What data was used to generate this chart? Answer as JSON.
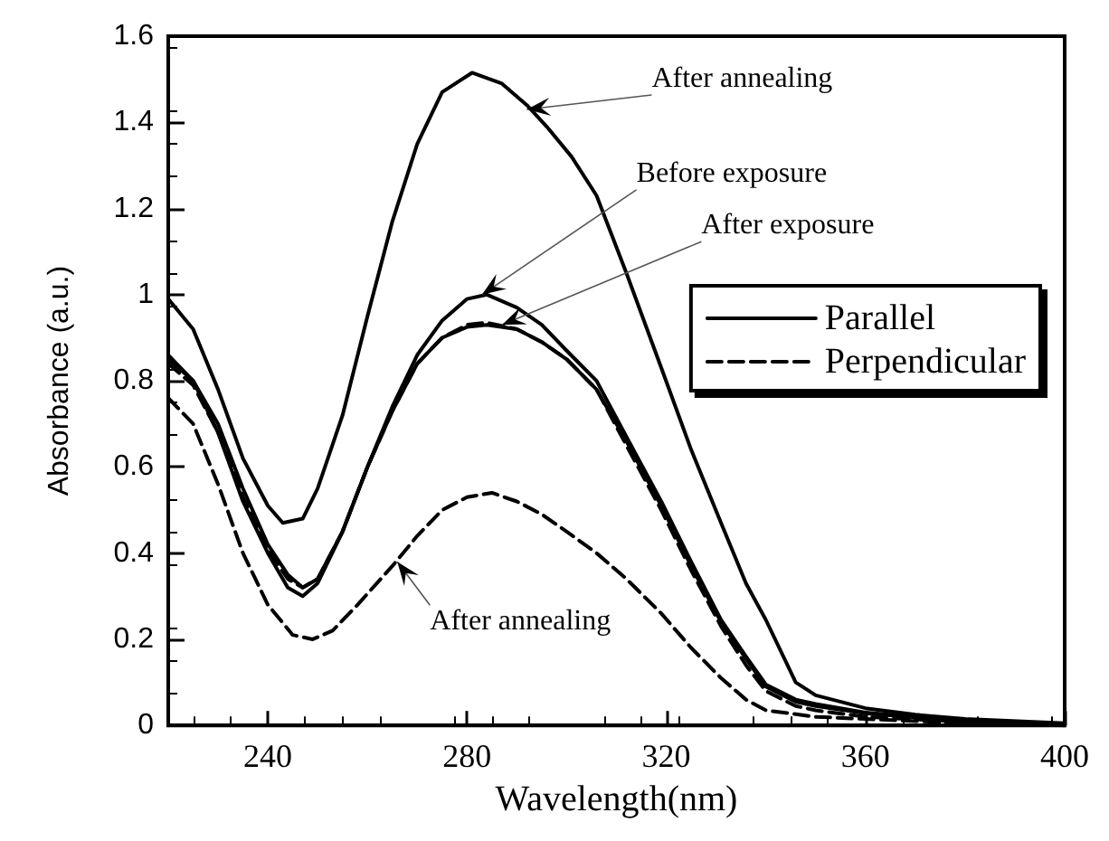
{
  "chart_data": {
    "type": "line",
    "xlabel": "Wavelength(nm)",
    "ylabel": "Absorbance (a.u.)",
    "xlim": [
      220,
      400
    ],
    "xticks": [
      240,
      280,
      320,
      360,
      400
    ],
    "ylim": [
      0,
      1.6
    ],
    "yticks": [
      0,
      0.2,
      0.4,
      0.6,
      0.8,
      1,
      1.2,
      1.4,
      1.6
    ],
    "grid": false,
    "legend": "right",
    "marker": "none",
    "series": [
      {
        "name": "Parallel",
        "color": "#000000",
        "line_style": "solid",
        "x": [
          220,
          225,
          230,
          235,
          240,
          243,
          247,
          250,
          255,
          260,
          265,
          270,
          275,
          281,
          287,
          292,
          296,
          301,
          306,
          312,
          319,
          325,
          331,
          336,
          340,
          346,
          350,
          360,
          370,
          380,
          400
        ],
        "values": [
          0.99,
          0.92,
          0.78,
          0.62,
          0.51,
          0.47,
          0.48,
          0.55,
          0.72,
          0.95,
          1.17,
          1.35,
          1.47,
          1.515,
          1.49,
          1.44,
          1.39,
          1.32,
          1.23,
          1.05,
          0.83,
          0.64,
          0.47,
          0.33,
          0.245,
          0.1,
          0.07,
          0.04,
          0.025,
          0.015,
          0.005
        ]
      },
      {
        "color": "#000000",
        "line_style": "solid",
        "x": [
          220,
          225,
          230,
          235,
          240,
          244,
          247,
          250,
          255,
          260,
          265,
          270,
          275,
          280,
          284,
          290,
          295,
          300,
          306,
          312,
          319,
          325,
          331,
          336,
          340,
          346,
          350,
          360,
          380,
          400
        ],
        "values": [
          0.86,
          0.8,
          0.68,
          0.52,
          0.4,
          0.32,
          0.3,
          0.33,
          0.45,
          0.6,
          0.74,
          0.86,
          0.94,
          0.99,
          1.0,
          0.97,
          0.93,
          0.87,
          0.8,
          0.67,
          0.52,
          0.38,
          0.245,
          0.16,
          0.095,
          0.06,
          0.05,
          0.03,
          0.01,
          0.0
        ]
      },
      {
        "color": "#000000",
        "line_style": "solid",
        "x": [
          220,
          225,
          230,
          235,
          240,
          244,
          247,
          250,
          255,
          260,
          265,
          270,
          275,
          280,
          284,
          290,
          295,
          300,
          306,
          312,
          319,
          325,
          331,
          336,
          340,
          346,
          350,
          360,
          380,
          400
        ],
        "values": [
          0.85,
          0.8,
          0.7,
          0.55,
          0.42,
          0.35,
          0.32,
          0.34,
          0.45,
          0.6,
          0.73,
          0.84,
          0.9,
          0.925,
          0.93,
          0.92,
          0.89,
          0.85,
          0.78,
          0.66,
          0.51,
          0.37,
          0.24,
          0.155,
          0.09,
          0.055,
          0.045,
          0.028,
          0.01,
          0.0
        ]
      },
      {
        "name": "Perpendicular",
        "color": "#000000",
        "line_style": "dashed",
        "x": [
          220,
          225,
          230,
          235,
          240,
          244,
          247,
          250,
          255,
          260,
          265,
          270,
          275,
          280,
          284,
          290,
          295,
          300,
          306,
          312,
          319,
          325,
          331,
          336,
          340,
          346,
          350,
          360,
          380,
          400
        ],
        "values": [
          0.84,
          0.79,
          0.68,
          0.53,
          0.41,
          0.34,
          0.32,
          0.34,
          0.45,
          0.6,
          0.73,
          0.84,
          0.9,
          0.93,
          0.935,
          0.92,
          0.89,
          0.85,
          0.78,
          0.65,
          0.5,
          0.36,
          0.23,
          0.14,
          0.08,
          0.045,
          0.035,
          0.02,
          0.008,
          0.0
        ]
      },
      {
        "color": "#000000",
        "line_style": "dashed",
        "x": [
          220,
          225,
          230,
          235,
          240,
          245,
          249,
          253,
          258,
          265,
          270,
          275,
          280,
          285,
          290,
          295,
          300,
          306,
          312,
          319,
          325,
          331,
          336,
          340,
          350,
          360,
          380,
          400
        ],
        "values": [
          0.76,
          0.7,
          0.56,
          0.4,
          0.28,
          0.21,
          0.2,
          0.22,
          0.28,
          0.37,
          0.44,
          0.5,
          0.53,
          0.54,
          0.52,
          0.49,
          0.45,
          0.4,
          0.34,
          0.26,
          0.18,
          0.11,
          0.06,
          0.035,
          0.02,
          0.015,
          0.005,
          0.0
        ]
      }
    ],
    "annotations": [
      {
        "text": "After annealing",
        "x": 292,
        "y": 1.43
      },
      {
        "text": "Before exposure",
        "x": 283,
        "y": 1.0
      },
      {
        "text": "After exposure",
        "x": 287,
        "y": 0.93
      },
      {
        "text": "After annealing",
        "x": 266,
        "y": 0.38
      }
    ]
  }
}
